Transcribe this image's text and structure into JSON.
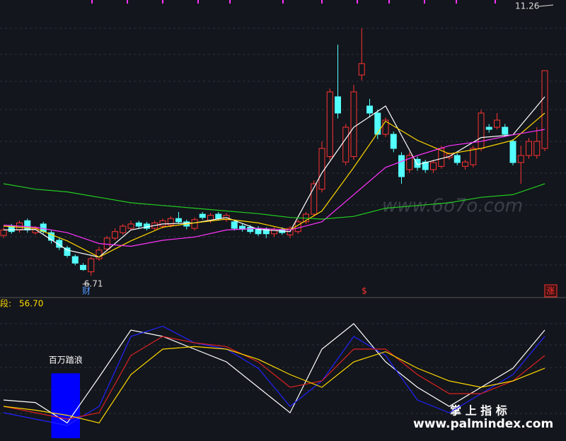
{
  "chart_data": [
    {
      "type": "candlestick",
      "ylim": [
        6.32,
        11.78
      ],
      "up_color": "#ff3232",
      "down_color": "#54ffff",
      "open": [
        7.45,
        7.62,
        7.55,
        7.72,
        7.5,
        7.66,
        7.5,
        7.36,
        7.22,
        7.06,
        6.9,
        6.78,
        7.02,
        7.2,
        7.4,
        7.5,
        7.58,
        7.68,
        7.66,
        7.58,
        7.62,
        7.64,
        7.76,
        7.7,
        7.58,
        7.84,
        7.72,
        7.84,
        7.74,
        7.7,
        7.62,
        7.6,
        7.58,
        7.56,
        7.48,
        7.56,
        7.46,
        7.52,
        7.7,
        7.84,
        8.3,
        8.9,
        10.0,
        8.8,
        8.9,
        10.4,
        9.83,
        9.7,
        9.31,
        9.31,
        8.92,
        8.66,
        8.85,
        8.8,
        8.66,
        8.72,
        8.88,
        8.92,
        8.72,
        8.75,
        9.05,
        9.44,
        9.44,
        9.44,
        9.18,
        8.79,
        8.92,
        8.92,
        9.05
      ],
      "close": [
        7.55,
        7.52,
        7.68,
        7.55,
        7.58,
        7.52,
        7.36,
        7.23,
        7.08,
        6.94,
        6.82,
        7.02,
        7.18,
        7.4,
        7.52,
        7.62,
        7.66,
        7.62,
        7.58,
        7.68,
        7.72,
        7.76,
        7.7,
        7.62,
        7.74,
        7.78,
        7.82,
        7.76,
        7.82,
        7.58,
        7.56,
        7.52,
        7.48,
        7.48,
        7.56,
        7.5,
        7.58,
        7.7,
        7.84,
        8.4,
        9.05,
        10.09,
        9.7,
        9.44,
        10.09,
        10.61,
        9.7,
        9.31,
        9.57,
        9.05,
        8.53,
        8.92,
        8.7,
        8.66,
        8.79,
        9.05,
        8.95,
        8.79,
        8.8,
        9.05,
        9.7,
        9.4,
        9.57,
        9.31,
        8.79,
        8.92,
        9.18,
        9.18,
        10.48
      ],
      "high": [
        7.6,
        7.66,
        7.72,
        7.76,
        7.62,
        7.7,
        7.54,
        7.4,
        7.26,
        7.1,
        6.94,
        7.06,
        7.24,
        7.44,
        7.58,
        7.66,
        7.72,
        7.72,
        7.7,
        7.72,
        7.76,
        7.8,
        7.88,
        7.74,
        7.78,
        7.88,
        7.86,
        7.88,
        7.86,
        7.74,
        7.66,
        7.64,
        7.62,
        7.6,
        7.6,
        7.6,
        7.62,
        7.74,
        7.88,
        8.46,
        9.18,
        10.15,
        10.96,
        9.5,
        10.22,
        11.26,
        9.96,
        9.76,
        9.62,
        9.36,
        8.98,
        8.98,
        8.9,
        8.84,
        8.84,
        9.1,
        8.98,
        8.96,
        8.84,
        9.1,
        9.76,
        9.5,
        9.7,
        9.5,
        9.22,
        9.1,
        9.24,
        9.44,
        10.48
      ],
      "low": [
        7.4,
        7.48,
        7.5,
        7.5,
        7.46,
        7.48,
        7.3,
        7.18,
        7.04,
        6.9,
        6.8,
        6.71,
        6.98,
        7.16,
        7.36,
        7.46,
        7.54,
        7.58,
        7.54,
        7.54,
        7.58,
        7.6,
        7.66,
        7.56,
        7.54,
        7.74,
        7.68,
        7.72,
        7.7,
        7.54,
        7.52,
        7.48,
        7.44,
        7.4,
        7.42,
        7.46,
        7.4,
        7.48,
        7.66,
        7.8,
        8.24,
        8.84,
        9.6,
        8.74,
        8.84,
        10.3,
        9.62,
        9.22,
        9.26,
        8.98,
        8.4,
        8.6,
        8.64,
        8.6,
        8.6,
        8.68,
        8.84,
        8.74,
        8.66,
        8.7,
        9.0,
        9.34,
        9.4,
        9.26,
        8.74,
        8.4,
        8.86,
        8.86,
        9.0
      ],
      "line_x": [
        0,
        4,
        8,
        12,
        16,
        20,
        24,
        28,
        32,
        36,
        40,
        44,
        48,
        52,
        56,
        60,
        64,
        68
      ],
      "series": [
        {
          "color": "#ffffff",
          "values": [
            7.55,
            7.56,
            7.18,
            7.05,
            7.55,
            7.66,
            7.68,
            7.78,
            7.56,
            7.52,
            8.6,
            9.44,
            9.83,
            8.75,
            8.9,
            9.25,
            9.3,
            10.0
          ]
        },
        {
          "color": "#ffd700",
          "values": [
            7.62,
            7.58,
            7.35,
            7.05,
            7.35,
            7.6,
            7.68,
            7.75,
            7.68,
            7.55,
            7.9,
            8.7,
            9.55,
            9.2,
            8.95,
            9.05,
            9.2,
            9.7
          ]
        },
        {
          "color": "#ff33ff",
          "values": [
            7.64,
            7.6,
            7.5,
            7.3,
            7.25,
            7.36,
            7.42,
            7.55,
            7.58,
            7.55,
            7.7,
            8.2,
            8.7,
            8.92,
            9.1,
            9.18,
            9.3,
            9.4
          ]
        },
        {
          "color": "#22cc22",
          "values": [
            8.4,
            8.3,
            8.25,
            8.15,
            8.05,
            8.0,
            7.95,
            7.9,
            7.85,
            7.78,
            7.75,
            7.8,
            7.95,
            8.0,
            8.05,
            8.15,
            8.2,
            8.4
          ]
        }
      ],
      "high_label": 11.26,
      "low_label": 6.71,
      "low_index": 11,
      "markers": [
        "财",
        "$",
        "涨"
      ],
      "watermark": "www.6o7o.com"
    },
    {
      "type": "line",
      "ylim": [
        0,
        100
      ],
      "indicator_name": "段:",
      "indicator_value": 56.7,
      "indicator_value_label": "56.70",
      "bar": {
        "name": "百万踏浪",
        "color": "#0000ff",
        "x": [
          6,
          9.6
        ],
        "value": 51
      },
      "line_x": [
        0,
        4,
        8,
        12,
        16,
        20,
        24,
        28,
        32,
        36,
        40,
        44,
        48,
        52,
        56,
        60,
        64,
        68
      ],
      "series": [
        {
          "color": "#ffffff",
          "values": [
            30,
            28,
            12,
            48,
            85,
            80,
            70,
            60,
            40,
            20,
            70,
            90,
            60,
            40,
            25,
            40,
            55,
            85
          ]
        },
        {
          "color": "#2222ff",
          "values": [
            20,
            15,
            10,
            25,
            80,
            88,
            75,
            70,
            55,
            25,
            45,
            80,
            65,
            30,
            20,
            35,
            50,
            80
          ]
        },
        {
          "color": "#dd2222",
          "values": [
            25,
            20,
            15,
            20,
            65,
            80,
            75,
            72,
            60,
            40,
            45,
            70,
            70,
            50,
            35,
            35,
            45,
            65
          ]
        },
        {
          "color": "#ffd700",
          "values": [
            25,
            22,
            18,
            12,
            50,
            70,
            72,
            70,
            62,
            50,
            40,
            60,
            68,
            55,
            45,
            40,
            45,
            55
          ]
        }
      ],
      "watermarks": [
        "掌 上 指 标",
        "www.palmindex.com"
      ]
    }
  ]
}
